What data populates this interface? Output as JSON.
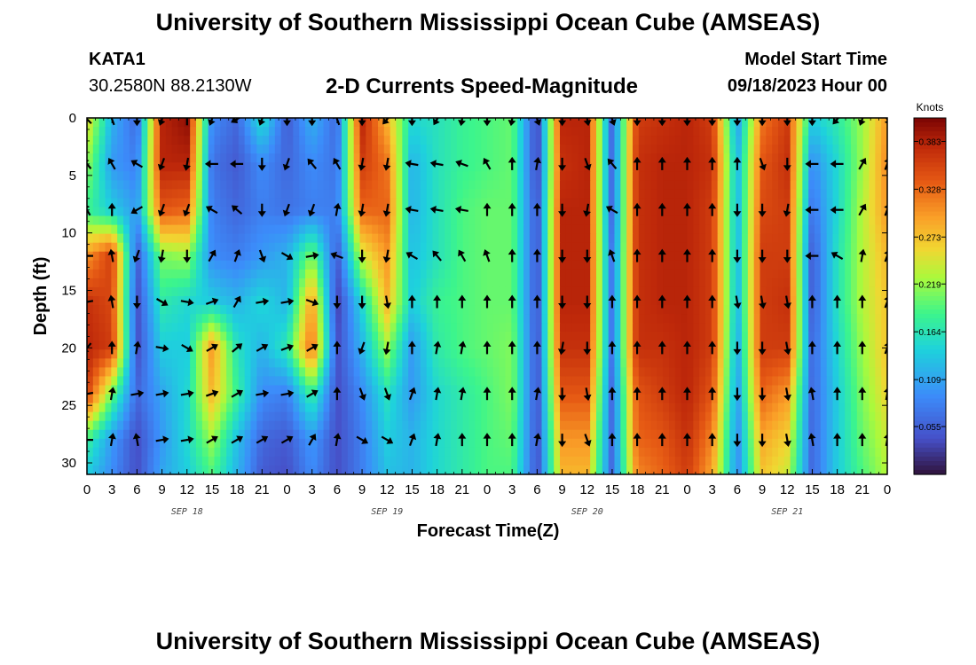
{
  "header": {
    "title": "University of Southern Mississippi Ocean Cube (AMSEAS)",
    "station_id": "KATA1",
    "coords": "30.2580N  88.2130W",
    "chart_title": "2-D Currents Speed-Magnitude",
    "model_start_label": "Model Start Time",
    "model_start_value": "09/18/2023 Hour 00"
  },
  "footer": {
    "title": "University of Southern Mississippi Ocean Cube (AMSEAS)"
  },
  "chart_data": {
    "type": "heatmap",
    "title": "2-D Currents Speed-Magnitude",
    "xlabel": "Forecast Time(Z)",
    "ylabel": "Depth (ft)",
    "x_hours_range": [
      0,
      96
    ],
    "x_tick_step_hours": 3,
    "x_tick_labels": [
      "0",
      "3",
      "6",
      "9",
      "12",
      "15",
      "18",
      "21",
      "0",
      "3",
      "6",
      "9",
      "12",
      "15",
      "18",
      "21",
      "0",
      "3",
      "6",
      "9",
      "12",
      "15",
      "18",
      "21",
      "0",
      "3",
      "6",
      "9",
      "12",
      "15",
      "18",
      "21",
      "0"
    ],
    "day_labels": [
      {
        "label": "SEP 18",
        "hour": 12
      },
      {
        "label": "SEP 19",
        "hour": 36
      },
      {
        "label": "SEP 20",
        "hour": 60
      },
      {
        "label": "SEP 21",
        "hour": 84
      }
    ],
    "ylim": [
      0,
      31
    ],
    "y_ticks": [
      0,
      5,
      10,
      15,
      20,
      25,
      30
    ],
    "colorbar": {
      "unit": "Knots",
      "min": 0.0,
      "max": 0.41,
      "tick_values": [
        0.383,
        0.328,
        0.273,
        0.219,
        0.164,
        0.109,
        0.055
      ],
      "tick_labels": [
        "0.383",
        "0.328",
        "0.273",
        "0.219",
        "0.164",
        "0.109",
        "0.055"
      ]
    },
    "depths_ft": [
      0,
      4,
      8,
      12,
      16,
      20,
      24,
      28,
      31
    ],
    "column_hours": [
      0,
      3,
      6,
      9,
      12,
      15,
      18,
      21,
      24,
      27,
      30,
      33,
      36,
      39,
      42,
      45,
      48,
      51,
      54,
      57,
      60,
      63,
      66,
      69,
      72,
      75,
      78,
      81,
      84,
      87,
      90,
      93,
      96
    ],
    "speed_knots": [
      [
        0.26,
        0.12,
        0.06,
        0.38,
        0.4,
        0.09,
        0.06,
        0.16,
        0.05,
        0.12,
        0.06,
        0.38,
        0.28,
        0.15,
        0.16,
        0.18,
        0.19,
        0.2,
        0.03,
        0.38,
        0.38,
        0.06,
        0.36,
        0.37,
        0.38,
        0.36,
        0.1,
        0.32,
        0.36,
        0.14,
        0.17,
        0.22,
        0.3
      ],
      [
        0.22,
        0.1,
        0.08,
        0.38,
        0.38,
        0.07,
        0.05,
        0.09,
        0.06,
        0.09,
        0.07,
        0.36,
        0.32,
        0.12,
        0.16,
        0.18,
        0.19,
        0.2,
        0.03,
        0.37,
        0.38,
        0.06,
        0.37,
        0.38,
        0.38,
        0.37,
        0.12,
        0.34,
        0.37,
        0.09,
        0.15,
        0.22,
        0.31
      ],
      [
        0.18,
        0.14,
        0.1,
        0.34,
        0.33,
        0.08,
        0.06,
        0.08,
        0.07,
        0.08,
        0.08,
        0.33,
        0.33,
        0.12,
        0.16,
        0.19,
        0.2,
        0.2,
        0.04,
        0.38,
        0.38,
        0.06,
        0.37,
        0.38,
        0.38,
        0.36,
        0.12,
        0.35,
        0.36,
        0.07,
        0.15,
        0.23,
        0.3
      ],
      [
        0.3,
        0.36,
        0.05,
        0.21,
        0.22,
        0.09,
        0.08,
        0.1,
        0.12,
        0.21,
        0.05,
        0.24,
        0.3,
        0.13,
        0.16,
        0.19,
        0.2,
        0.2,
        0.04,
        0.38,
        0.38,
        0.07,
        0.37,
        0.38,
        0.38,
        0.36,
        0.12,
        0.36,
        0.36,
        0.05,
        0.16,
        0.23,
        0.28
      ],
      [
        0.37,
        0.35,
        0.04,
        0.17,
        0.15,
        0.14,
        0.12,
        0.15,
        0.12,
        0.3,
        0.03,
        0.15,
        0.28,
        0.14,
        0.18,
        0.19,
        0.2,
        0.2,
        0.04,
        0.38,
        0.38,
        0.07,
        0.37,
        0.38,
        0.38,
        0.36,
        0.12,
        0.36,
        0.37,
        0.05,
        0.16,
        0.23,
        0.27
      ],
      [
        0.38,
        0.36,
        0.04,
        0.14,
        0.14,
        0.3,
        0.16,
        0.12,
        0.17,
        0.33,
        0.04,
        0.12,
        0.22,
        0.1,
        0.17,
        0.19,
        0.2,
        0.21,
        0.04,
        0.37,
        0.37,
        0.07,
        0.37,
        0.37,
        0.38,
        0.36,
        0.11,
        0.36,
        0.36,
        0.06,
        0.15,
        0.22,
        0.27
      ],
      [
        0.36,
        0.2,
        0.06,
        0.11,
        0.15,
        0.28,
        0.18,
        0.09,
        0.08,
        0.18,
        0.04,
        0.09,
        0.16,
        0.1,
        0.15,
        0.17,
        0.19,
        0.21,
        0.04,
        0.34,
        0.34,
        0.06,
        0.34,
        0.36,
        0.38,
        0.34,
        0.1,
        0.33,
        0.3,
        0.06,
        0.14,
        0.21,
        0.26
      ],
      [
        0.18,
        0.1,
        0.04,
        0.1,
        0.15,
        0.22,
        0.13,
        0.06,
        0.05,
        0.1,
        0.04,
        0.08,
        0.14,
        0.12,
        0.15,
        0.17,
        0.19,
        0.2,
        0.04,
        0.3,
        0.3,
        0.06,
        0.33,
        0.34,
        0.37,
        0.31,
        0.09,
        0.29,
        0.26,
        0.06,
        0.14,
        0.2,
        0.24
      ],
      [
        0.14,
        0.09,
        0.04,
        0.11,
        0.14,
        0.19,
        0.12,
        0.05,
        0.04,
        0.09,
        0.04,
        0.08,
        0.13,
        0.12,
        0.15,
        0.17,
        0.19,
        0.19,
        0.04,
        0.28,
        0.28,
        0.06,
        0.31,
        0.33,
        0.36,
        0.29,
        0.09,
        0.27,
        0.24,
        0.06,
        0.14,
        0.19,
        0.23
      ]
    ],
    "arrow_depths_ft": [
      0,
      4,
      8,
      12,
      16,
      20,
      24,
      28
    ],
    "arrow_hours": [
      0,
      3,
      6,
      9,
      12,
      15,
      18,
      21,
      24,
      27,
      30,
      33,
      36,
      39,
      42,
      45,
      48,
      51,
      54,
      57,
      60,
      63,
      66,
      69,
      72,
      75,
      78,
      81,
      84,
      87,
      90,
      93,
      96
    ],
    "arrow_directions_deg": [
      [
        315,
        340,
        180,
        200,
        0,
        200,
        240,
        200,
        180,
        180,
        340,
        180,
        220,
        180,
        210,
        190,
        180,
        190,
        160,
        180,
        170,
        160,
        180,
        180,
        180,
        180,
        180,
        180,
        180,
        180,
        220,
        200,
        150
      ],
      [
        320,
        330,
        300,
        200,
        190,
        270,
        270,
        180,
        200,
        320,
        330,
        190,
        190,
        280,
        280,
        290,
        330,
        0,
        10,
        180,
        160,
        320,
        0,
        0,
        0,
        0,
        0,
        160,
        180,
        270,
        270,
        30,
        20
      ],
      [
        330,
        0,
        240,
        200,
        200,
        300,
        310,
        180,
        200,
        200,
        10,
        190,
        190,
        280,
        280,
        280,
        0,
        0,
        0,
        180,
        190,
        300,
        0,
        0,
        0,
        0,
        180,
        180,
        190,
        270,
        270,
        30,
        20
      ],
      [
        270,
        350,
        200,
        190,
        180,
        30,
        20,
        160,
        120,
        80,
        290,
        180,
        190,
        300,
        320,
        330,
        340,
        0,
        0,
        180,
        180,
        340,
        0,
        0,
        0,
        0,
        180,
        180,
        180,
        270,
        300,
        10,
        20
      ],
      [
        260,
        350,
        180,
        120,
        100,
        70,
        30,
        80,
        80,
        110,
        180,
        180,
        170,
        0,
        0,
        0,
        0,
        0,
        0,
        180,
        180,
        0,
        0,
        0,
        0,
        0,
        170,
        170,
        170,
        0,
        0,
        0,
        20
      ],
      [
        220,
        0,
        10,
        100,
        120,
        60,
        50,
        60,
        70,
        60,
        0,
        200,
        190,
        0,
        10,
        10,
        0,
        0,
        0,
        190,
        180,
        0,
        0,
        0,
        0,
        0,
        180,
        180,
        170,
        0,
        0,
        0,
        20
      ],
      [
        260,
        10,
        80,
        80,
        80,
        70,
        60,
        80,
        80,
        60,
        0,
        160,
        160,
        20,
        10,
        10,
        0,
        0,
        10,
        180,
        170,
        0,
        0,
        0,
        0,
        0,
        180,
        180,
        170,
        350,
        0,
        0,
        10
      ],
      [
        270,
        10,
        350,
        80,
        80,
        60,
        60,
        60,
        60,
        30,
        10,
        120,
        120,
        20,
        10,
        0,
        0,
        0,
        10,
        180,
        160,
        0,
        0,
        0,
        0,
        0,
        180,
        180,
        170,
        350,
        0,
        0,
        10
      ]
    ]
  }
}
